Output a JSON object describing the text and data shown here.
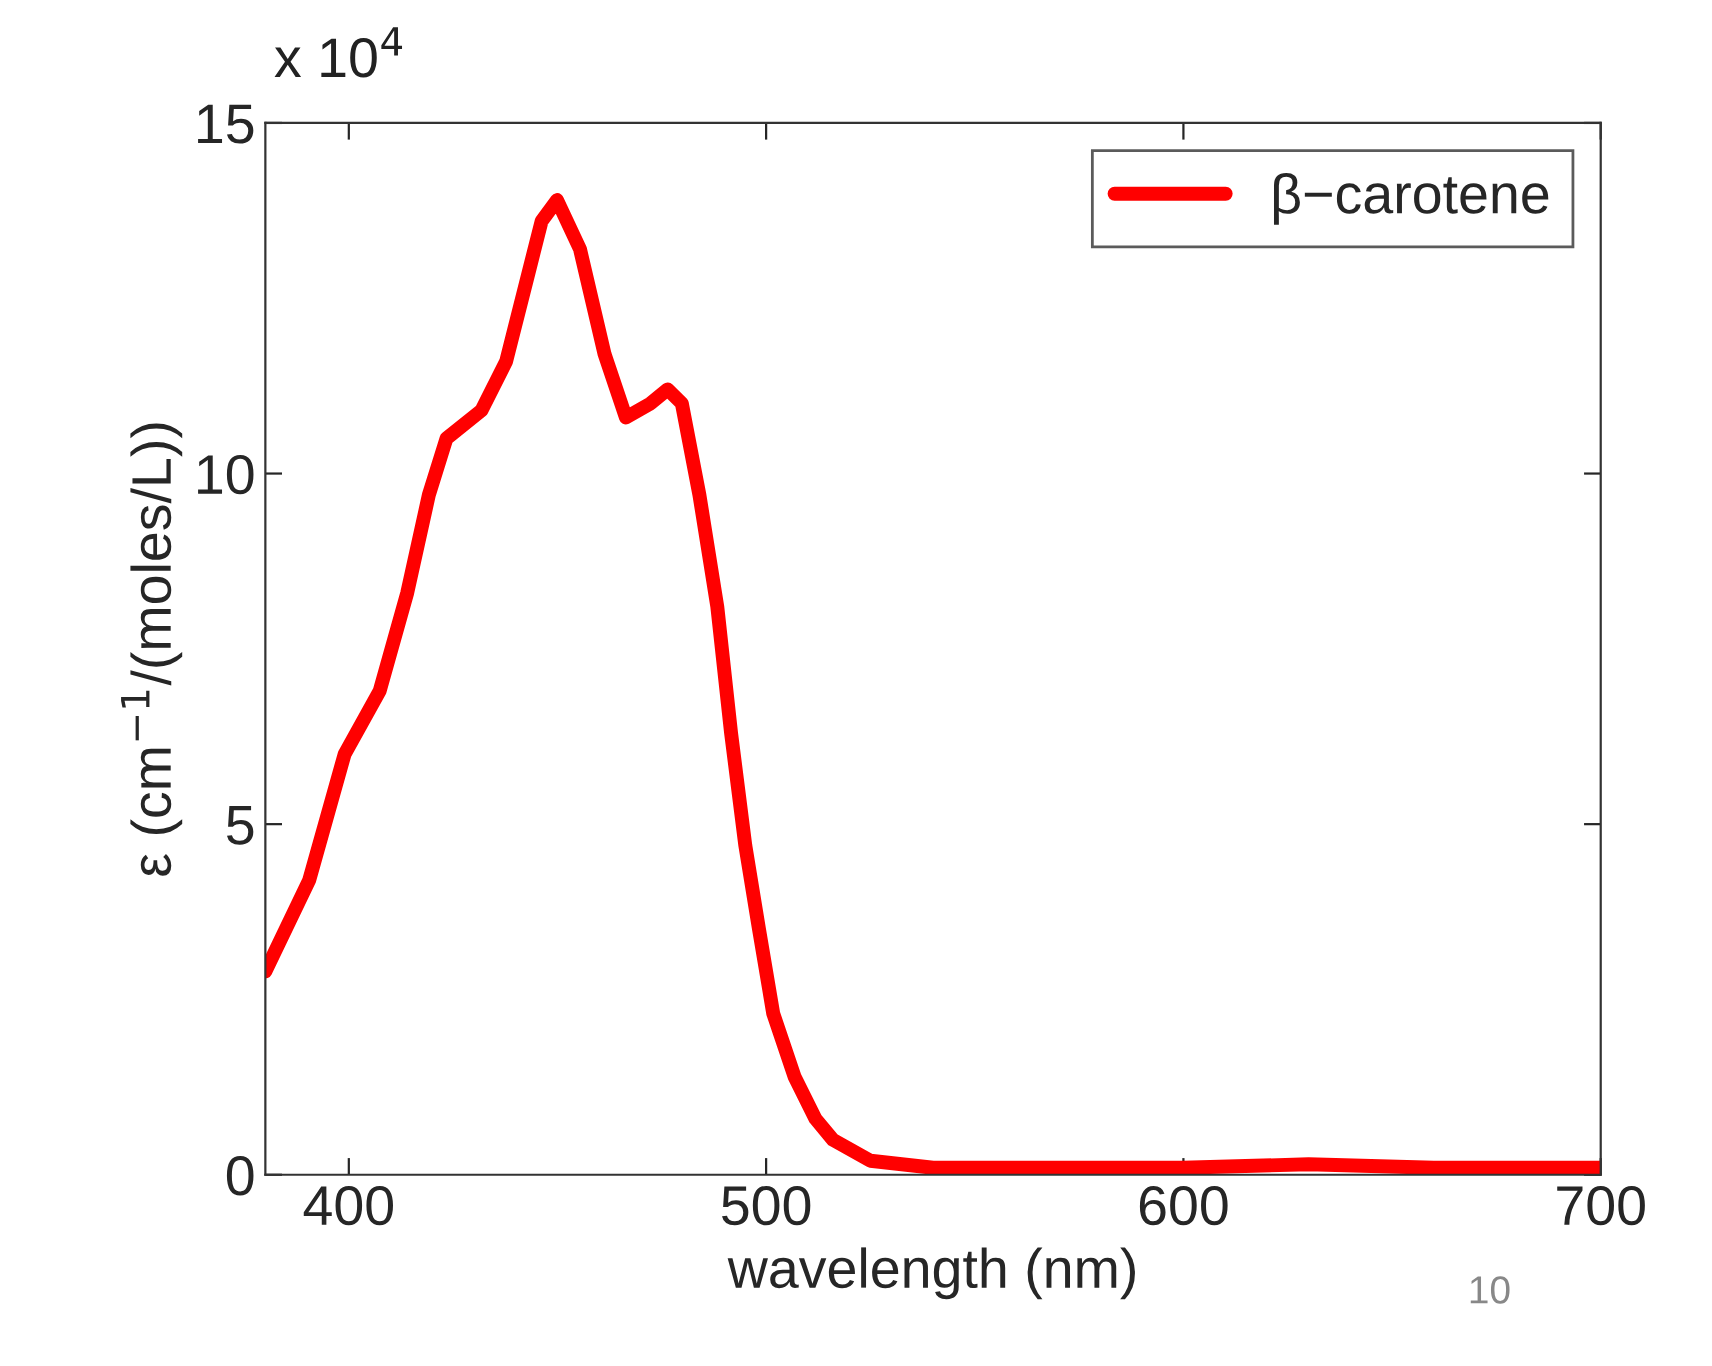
{
  "chart_data": {
    "type": "line",
    "xlabel": "wavelength (nm)",
    "ylabel": "ε (cm$^{−1}$/(moles/L))",
    "annotations": [
      "x 10$^{4}$",
      "10"
    ],
    "xlim": [
      380,
      700
    ],
    "xticks": [
      400,
      500,
      600,
      700
    ],
    "ylim": [
      0,
      15
    ],
    "yticks": [
      0,
      5,
      10,
      15
    ],
    "grid": false,
    "legend": "top right",
    "series": [
      {
        "name": "β−carotene",
        "color": "#ff0000",
        "x": [
          380,
          390.5,
          399,
          407.4,
          414,
          419.2,
          423.4,
          431.8,
          437.7,
          442.8,
          446.2,
          449.9,
          455.4,
          461.3,
          466.4,
          472.3,
          476.4,
          479.8,
          484,
          488.3,
          491.6,
          495,
          498.3,
          501.7,
          506.8,
          511.8,
          516,
          525,
          540,
          560,
          580,
          600,
          630,
          660,
          680,
          700
        ],
        "values": [
          2.9,
          4.2,
          6.0,
          6.9,
          8.3,
          9.7,
          10.5,
          10.9,
          11.6,
          12.8,
          13.6,
          13.9,
          13.2,
          11.7,
          10.8,
          11.0,
          11.2,
          11.0,
          9.7,
          8.1,
          6.3,
          4.7,
          3.5,
          2.3,
          1.4,
          0.8,
          0.5,
          0.2,
          0.1,
          0.1,
          0.1,
          0.1,
          0.15,
          0.1,
          0.1,
          0.1
        ]
      }
    ]
  }
}
